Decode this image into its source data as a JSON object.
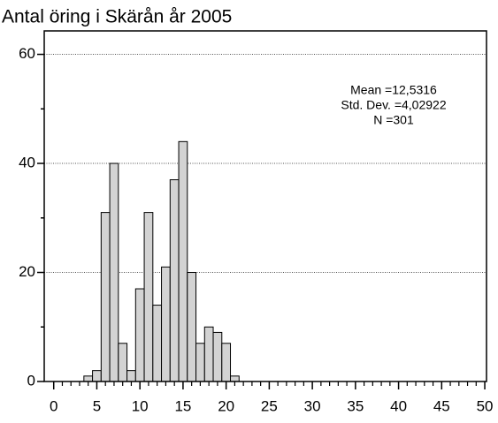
{
  "chart_data": {
    "type": "histogram",
    "title": "Antal öring i Skärån år 2005",
    "annotations": [
      "Mean =12,5316",
      "Std. Dev. =4,02922",
      "N =301"
    ],
    "bins": [
      3.5,
      4.5,
      5.5,
      6.5,
      7.5,
      8.5,
      9.5,
      10.5,
      11.5,
      12.5,
      13.5,
      14.5,
      15.5,
      16.5,
      17.5,
      18.5,
      19.5,
      20.5,
      21.5
    ],
    "values": [
      1,
      2,
      31,
      40,
      7,
      2,
      17,
      31,
      14,
      21,
      37,
      44,
      20,
      7,
      10,
      9,
      7,
      1
    ],
    "color": "#d3d3d3",
    "xlim": [
      -1.1,
      50.2
    ],
    "xticks": [
      0,
      5,
      10,
      15,
      20,
      25,
      30,
      35,
      40,
      45,
      50
    ],
    "xminorticks": [
      1,
      2,
      3,
      4,
      6,
      7,
      8,
      9,
      11,
      12,
      13,
      14,
      16,
      17,
      18,
      19,
      21,
      22,
      23,
      24,
      26,
      27,
      28,
      29,
      31,
      32,
      33,
      34,
      36,
      37,
      38,
      39,
      41,
      42,
      43,
      44,
      46,
      47,
      48,
      49
    ],
    "ylim": [
      0,
      64.3
    ],
    "yticks": [
      0,
      20,
      40,
      60
    ],
    "yminorticks": [
      10,
      30,
      50
    ],
    "grid": true
  }
}
